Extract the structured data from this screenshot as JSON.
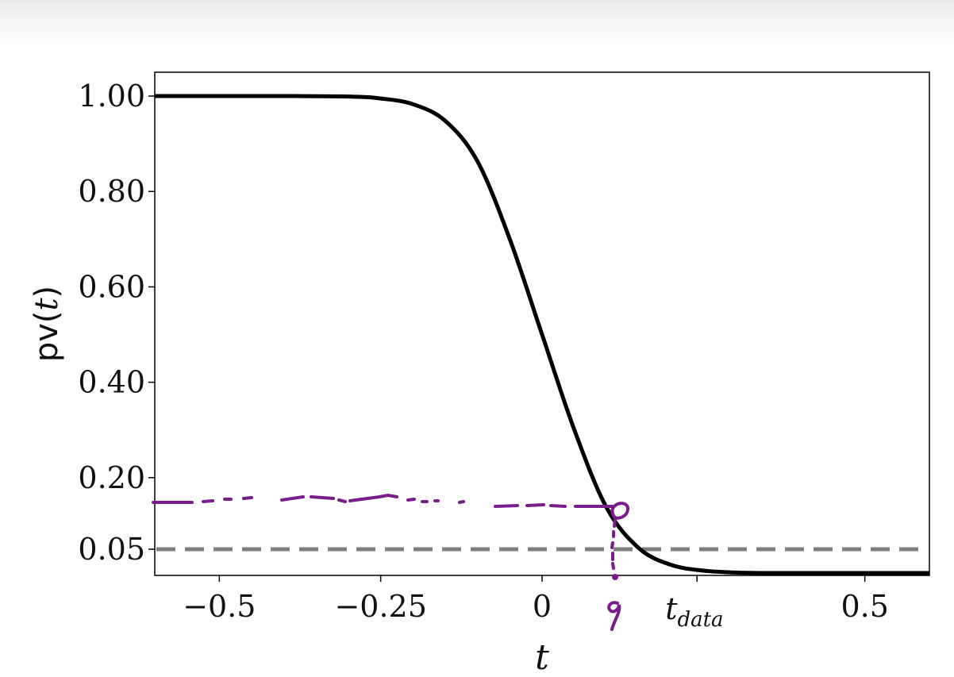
{
  "chart_data": {
    "type": "line",
    "title": "",
    "xlabel": "t",
    "ylabel": {
      "prefix": "pv(",
      "var": "t",
      "suffix": ")"
    },
    "xlim": [
      -0.6,
      0.6
    ],
    "ylim": [
      -0.005,
      1.05
    ],
    "grid": false,
    "legend": "none",
    "x_ticks": [
      {
        "value": -0.5,
        "label": "−0.5"
      },
      {
        "value": -0.25,
        "label": "−0.25"
      },
      {
        "value": 0,
        "label": "0"
      },
      {
        "value": 0.5,
        "label": "0.5"
      }
    ],
    "x_annotation": {
      "value": 0.24,
      "base": "t",
      "subscript": "data"
    },
    "y_ticks": [
      {
        "value": 1.0,
        "label": "1.00"
      },
      {
        "value": 0.8,
        "label": "0.80"
      },
      {
        "value": 0.6,
        "label": "0.60"
      },
      {
        "value": 0.4,
        "label": "0.40"
      },
      {
        "value": 0.2,
        "label": "0.20"
      },
      {
        "value": 0.05,
        "label": "0.05"
      }
    ],
    "series": [
      {
        "color": "#000000",
        "style": "solid",
        "x": [
          -0.6,
          -0.5,
          -0.4,
          -0.3,
          -0.25,
          -0.2,
          -0.15,
          -0.1,
          -0.05,
          0,
          0.05,
          0.1,
          0.15,
          0.2,
          0.25,
          0.3,
          0.35,
          0.4,
          0.5,
          0.6
        ],
        "y": [
          1.0,
          1.0,
          1.0,
          0.999,
          0.995,
          0.983,
          0.948,
          0.863,
          0.7,
          0.5,
          0.3,
          0.137,
          0.052,
          0.017,
          0.005,
          0.001,
          0.0,
          0.0,
          0.0,
          0.0
        ]
      }
    ],
    "reference_lines": [
      {
        "axis": "y",
        "value": 0.05,
        "color": "#808080",
        "style": "dashed"
      }
    ],
    "annotations": [
      {
        "kind": "handwritten-dashed-line",
        "color": "#7a1c8c",
        "from": [
          -0.6,
          0.15
        ],
        "to": [
          0.12,
          0.145
        ]
      },
      {
        "kind": "handwritten-vertical-dashed-line",
        "color": "#7a1c8c",
        "x": 0.12,
        "from_y": 0.137,
        "to_y": 0.0
      },
      {
        "kind": "handwritten-circle",
        "color": "#7a1c8c",
        "x": 0.12,
        "y": 0.137
      },
      {
        "kind": "handwritten-mark",
        "color": "#7a1c8c",
        "x": 0.12,
        "below_axis": true
      }
    ]
  },
  "colors": {
    "curve": "#000000",
    "reference_line": "#808080",
    "annotation": "#7a1c8c",
    "axes": "#000000"
  }
}
